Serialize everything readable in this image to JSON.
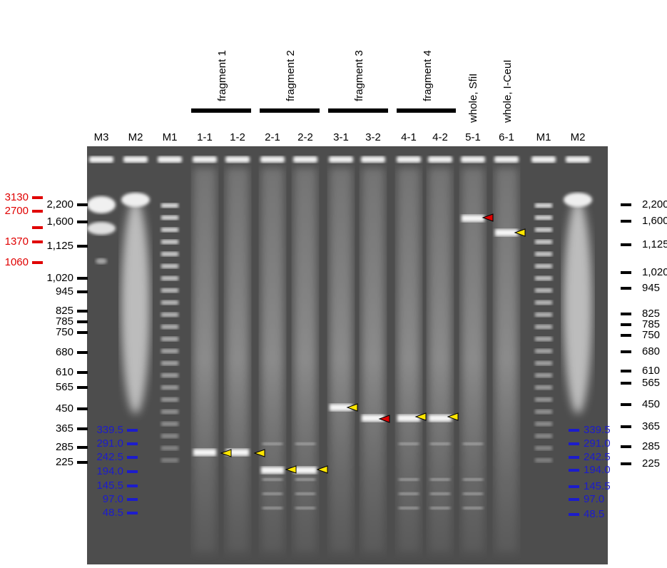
{
  "groups": [
    "fragment 1",
    "fragment 2",
    "fragment 3",
    "fragment 4",
    "whole, SfiI",
    "whole, I-CeuI"
  ],
  "lanes": [
    "M3",
    "M2",
    "M1",
    "1-1",
    "1-2",
    "2-1",
    "2-2",
    "3-1",
    "3-2",
    "4-1",
    "4-2",
    "5-1",
    "6-1",
    "M1",
    "M2"
  ],
  "markers": {
    "red_left": [
      "3130",
      "2700",
      "1370",
      "1060"
    ],
    "black_left": [
      "2,200",
      "1,600",
      "1,125",
      "1,020",
      "945",
      "825",
      "785",
      "750",
      "680",
      "610",
      "565",
      "450",
      "365",
      "285",
      "225"
    ],
    "black_right": [
      "2,200",
      "1,600",
      "1,125",
      "1,020",
      "945",
      "825",
      "785",
      "750",
      "680",
      "610",
      "565",
      "450",
      "365",
      "285",
      "225"
    ],
    "blue_left": [
      "339.5",
      "291.0",
      "242.5",
      "194.0",
      "145.5",
      "97.0",
      "48.5"
    ],
    "blue_right": [
      "339.5",
      "291.0",
      "242.5",
      "194.0",
      "145.5",
      "97.0",
      "48.5"
    ]
  }
}
